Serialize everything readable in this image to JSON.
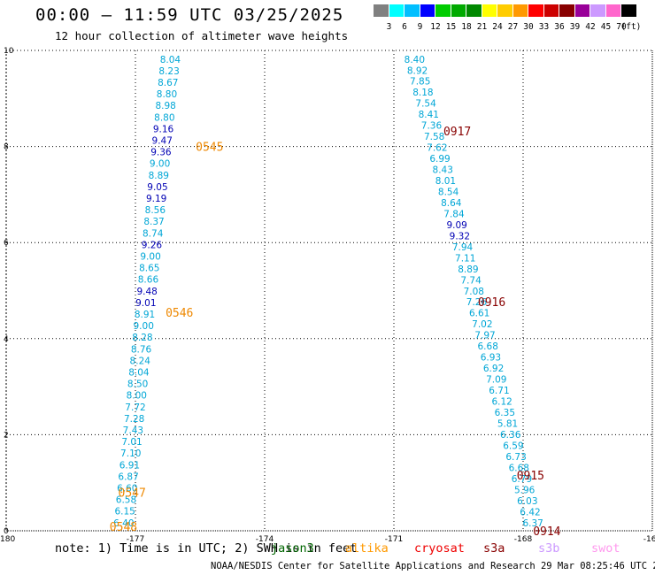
{
  "header": {
    "title": "00:00 – 11:59 UTC 03/25/2025",
    "subtitle": "12 hour collection of altimeter wave heights"
  },
  "legend": {
    "colors": [
      {
        "label": "3",
        "hex": "#808080"
      },
      {
        "label": "6",
        "hex": "#00ffff"
      },
      {
        "label": "9",
        "hex": "#00bfff"
      },
      {
        "label": "12",
        "hex": "#0000ff"
      },
      {
        "label": "15",
        "hex": "#00cc00"
      },
      {
        "label": "18",
        "hex": "#00aa00"
      },
      {
        "label": "21",
        "hex": "#008800"
      },
      {
        "label": "24",
        "hex": "#ffff00"
      },
      {
        "label": "27",
        "hex": "#ffcc00"
      },
      {
        "label": "30",
        "hex": "#ff9900"
      },
      {
        "label": "33",
        "hex": "#ff0000"
      },
      {
        "label": "36",
        "hex": "#cc0000"
      },
      {
        "label": "39",
        "hex": "#880000"
      },
      {
        "label": "42",
        "hex": "#990099"
      },
      {
        "label": "45",
        "hex": "#cc99ff"
      },
      {
        "label": "70",
        "hex": "#ff66cc"
      },
      {
        "label": "",
        "hex": "#000000"
      }
    ],
    "unit": "(ft)"
  },
  "map": {
    "lon_range": [
      -180,
      -165
    ],
    "lat_range": [
      0,
      10
    ],
    "x_ticks": [
      {
        "value": -180,
        "label": "-180"
      },
      {
        "value": -177,
        "label": "-177"
      },
      {
        "value": -174,
        "label": "-174"
      },
      {
        "value": -171,
        "label": "-171"
      },
      {
        "value": -168,
        "label": "-168"
      },
      {
        "value": -165,
        "label": "-165"
      }
    ],
    "y_ticks": [
      {
        "value": 0,
        "label": "0"
      },
      {
        "value": 2,
        "label": "2"
      },
      {
        "value": 4,
        "label": "4"
      },
      {
        "value": 6,
        "label": "6"
      },
      {
        "value": 8,
        "label": "8"
      },
      {
        "value": 10,
        "label": "10"
      }
    ],
    "colors": {
      "light": "#00a6d6",
      "dark": "#0000b4",
      "time_jason": "#ee8800",
      "time_cryo": "#880000"
    },
    "tracks": [
      {
        "name": "west-track",
        "start": [
          -176.19,
          9.82
        ],
        "end": [
          -177.27,
          0.17
        ],
        "points": [
          {
            "v": "8.04",
            "c": "light"
          },
          {
            "v": "8.23",
            "c": "light"
          },
          {
            "v": "8.67",
            "c": "light"
          },
          {
            "v": "8.80",
            "c": "light"
          },
          {
            "v": "8.98",
            "c": "light"
          },
          {
            "v": "8.80",
            "c": "light"
          },
          {
            "v": "9.16",
            "c": "dark"
          },
          {
            "v": "9.47",
            "c": "dark"
          },
          {
            "v": "9.36",
            "c": "dark"
          },
          {
            "v": "9.00",
            "c": "light"
          },
          {
            "v": "8.89",
            "c": "light"
          },
          {
            "v": "9.05",
            "c": "dark"
          },
          {
            "v": "9.19",
            "c": "dark"
          },
          {
            "v": "8.56",
            "c": "light"
          },
          {
            "v": "8.37",
            "c": "light"
          },
          {
            "v": "8.74",
            "c": "light"
          },
          {
            "v": "9.26",
            "c": "dark"
          },
          {
            "v": "9.00",
            "c": "light"
          },
          {
            "v": "8.65",
            "c": "light"
          },
          {
            "v": "8.66",
            "c": "light"
          },
          {
            "v": "9.48",
            "c": "dark"
          },
          {
            "v": "9.01",
            "c": "dark"
          },
          {
            "v": "8.91",
            "c": "light"
          },
          {
            "v": "9.00",
            "c": "light"
          },
          {
            "v": "8.28",
            "c": "light"
          },
          {
            "v": "8.76",
            "c": "light"
          },
          {
            "v": "8.24",
            "c": "light"
          },
          {
            "v": "8.04",
            "c": "light"
          },
          {
            "v": "8.50",
            "c": "light"
          },
          {
            "v": "8.00",
            "c": "light"
          },
          {
            "v": "7.72",
            "c": "light"
          },
          {
            "v": "7.28",
            "c": "light"
          },
          {
            "v": "7.43",
            "c": "light"
          },
          {
            "v": "7.01",
            "c": "light"
          },
          {
            "v": "7.10",
            "c": "light"
          },
          {
            "v": "6.91",
            "c": "light"
          },
          {
            "v": "6.87",
            "c": "light"
          },
          {
            "v": "6.60",
            "c": "light"
          },
          {
            "v": "6.58",
            "c": "light"
          },
          {
            "v": "6.15",
            "c": "light"
          },
          {
            "v": "6.40",
            "c": "light"
          }
        ]
      },
      {
        "name": "east-track",
        "start": [
          -170.52,
          9.82
        ],
        "end": [
          -167.77,
          0.17
        ],
        "points": [
          {
            "v": "8.40",
            "c": "light"
          },
          {
            "v": "8.92",
            "c": "light"
          },
          {
            "v": "7.85",
            "c": "light"
          },
          {
            "v": "8.18",
            "c": "light"
          },
          {
            "v": "7.54",
            "c": "light"
          },
          {
            "v": "8.41",
            "c": "light"
          },
          {
            "v": "7.36",
            "c": "light"
          },
          {
            "v": "7.58",
            "c": "light"
          },
          {
            "v": "7.62",
            "c": "light"
          },
          {
            "v": "6.99",
            "c": "light"
          },
          {
            "v": "8.43",
            "c": "light"
          },
          {
            "v": "8.01",
            "c": "light"
          },
          {
            "v": "8.54",
            "c": "light"
          },
          {
            "v": "8.64",
            "c": "light"
          },
          {
            "v": "7.84",
            "c": "light"
          },
          {
            "v": "9.09",
            "c": "dark"
          },
          {
            "v": "9.32",
            "c": "dark"
          },
          {
            "v": "7.94",
            "c": "light"
          },
          {
            "v": "7.11",
            "c": "light"
          },
          {
            "v": "8.89",
            "c": "light"
          },
          {
            "v": "7.74",
            "c": "light"
          },
          {
            "v": "7.08",
            "c": "light"
          },
          {
            "v": "7.26",
            "c": "light"
          },
          {
            "v": "6.61",
            "c": "light"
          },
          {
            "v": "7.02",
            "c": "light"
          },
          {
            "v": "7.97",
            "c": "light"
          },
          {
            "v": "6.68",
            "c": "light"
          },
          {
            "v": "6.93",
            "c": "light"
          },
          {
            "v": "6.92",
            "c": "light"
          },
          {
            "v": "7.09",
            "c": "light"
          },
          {
            "v": "6.71",
            "c": "light"
          },
          {
            "v": "6.12",
            "c": "light"
          },
          {
            "v": "6.35",
            "c": "light"
          },
          {
            "v": "5.81",
            "c": "light"
          },
          {
            "v": "6.36",
            "c": "light"
          },
          {
            "v": "6.59",
            "c": "light"
          },
          {
            "v": "6.73",
            "c": "light"
          },
          {
            "v": "6.68",
            "c": "light"
          },
          {
            "v": "6.79",
            "c": "light"
          },
          {
            "v": "5.96",
            "c": "light"
          },
          {
            "v": "6.03",
            "c": "light"
          },
          {
            "v": "6.42",
            "c": "light"
          },
          {
            "v": "6.37",
            "c": "light"
          }
        ]
      }
    ],
    "time_labels": [
      {
        "text": "0545",
        "lon": -175.6,
        "lat": 8.0,
        "c": "time_jason"
      },
      {
        "text": "0546",
        "lon": -176.3,
        "lat": 4.55,
        "c": "time_jason"
      },
      {
        "text": "0547",
        "lon": -177.4,
        "lat": 0.8,
        "c": "time_jason"
      },
      {
        "text": "0548",
        "lon": -177.6,
        "lat": 0.09,
        "c": "time_jason"
      },
      {
        "text": "0917",
        "lon": -169.85,
        "lat": 8.32,
        "c": "time_cryo"
      },
      {
        "text": "0916",
        "lon": -169.05,
        "lat": 4.77,
        "c": "time_cryo"
      },
      {
        "text": "0915",
        "lon": -168.15,
        "lat": 1.16,
        "c": "time_cryo"
      },
      {
        "text": "0914",
        "lon": -167.77,
        "lat": 0.0,
        "c": "time_cryo"
      }
    ]
  },
  "footer": {
    "note": "note: 1) Time is in UTC; 2) SWH is in feet",
    "missions": [
      {
        "name": "jason3",
        "label": "jason3",
        "hex": "#006600"
      },
      {
        "name": "altika",
        "label": "altika",
        "hex": "#ff9900"
      },
      {
        "name": "cryosat",
        "label": "cryosat",
        "hex": "#ee0000"
      },
      {
        "name": "s3a",
        "label": "s3a",
        "hex": "#880000"
      },
      {
        "name": "s3b",
        "label": "s3b",
        "hex": "#cc99ff"
      },
      {
        "name": "swot",
        "label": "swot",
        "hex": "#ff99ee"
      }
    ],
    "credit": "NOAA/NESDIS Center for Satellite Applications and Research   29 Mar 08:25:46 UTC 2025"
  }
}
